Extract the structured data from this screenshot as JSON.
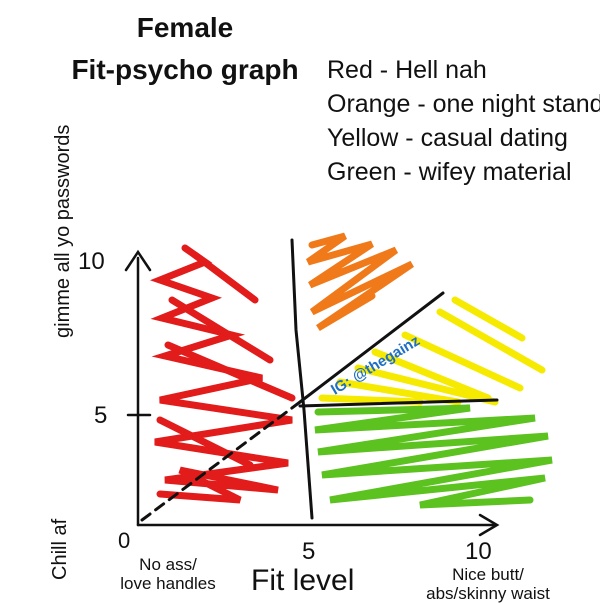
{
  "title": [
    "Female",
    "Fit-psycho graph"
  ],
  "legend": [
    {
      "text": "Red - Hell nah",
      "color": "#e21b1b"
    },
    {
      "text": "Orange - one night stand",
      "color": "#f07a1a"
    },
    {
      "text": "Yellow - casual dating",
      "color": "#f6ea00"
    },
    {
      "text": "Green - wifey material",
      "color": "#5cc21f"
    }
  ],
  "y_axis": {
    "label_top": "gimme all yo passwords",
    "label_bottom": "Chill af",
    "tick_10": "10",
    "tick_5": "5"
  },
  "x_axis": {
    "label": "Fit level",
    "tick_0": "0",
    "tick_5": "5",
    "tick_10": "10",
    "note_left": "No ass/\nlove handles",
    "note_right": "Nice butt/\nabs/skinny waist"
  },
  "watermark": "IG: @thegainz",
  "colors": {
    "axis": "#111111",
    "red": "#e21b1b",
    "orange": "#f07a1a",
    "yellow": "#f6ea00",
    "green": "#5cc21f",
    "watermark": "#1f6fc2"
  }
}
